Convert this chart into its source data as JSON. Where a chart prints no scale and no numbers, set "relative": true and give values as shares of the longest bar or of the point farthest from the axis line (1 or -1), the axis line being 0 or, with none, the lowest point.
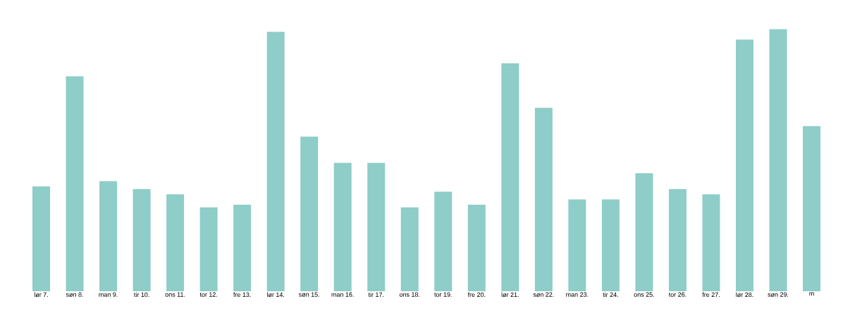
{
  "chart_data": {
    "type": "bar",
    "relative": true,
    "color": "#8ecdc8",
    "categories": [
      "lør 7.",
      "søn 8.",
      "man 9.",
      "tir 10.",
      "ons 11.",
      "tor 12.",
      "fre 13.",
      "lør 14.",
      "søn 15.",
      "man 16.",
      "tir 17.",
      "ons 18.",
      "tor 19.",
      "fre 20.",
      "lør 21.",
      "søn 22.",
      "man 23.",
      "tir 24.",
      "ons 25.",
      "tor 26.",
      "fre 27.",
      "lør 28.",
      "søn 29.",
      "m"
    ],
    "values": [
      0.4,
      0.82,
      0.42,
      0.39,
      0.37,
      0.32,
      0.33,
      0.99,
      0.59,
      0.49,
      0.49,
      0.32,
      0.38,
      0.33,
      0.87,
      0.7,
      0.35,
      0.35,
      0.45,
      0.39,
      0.37,
      0.96,
      1,
      0.63
    ]
  }
}
